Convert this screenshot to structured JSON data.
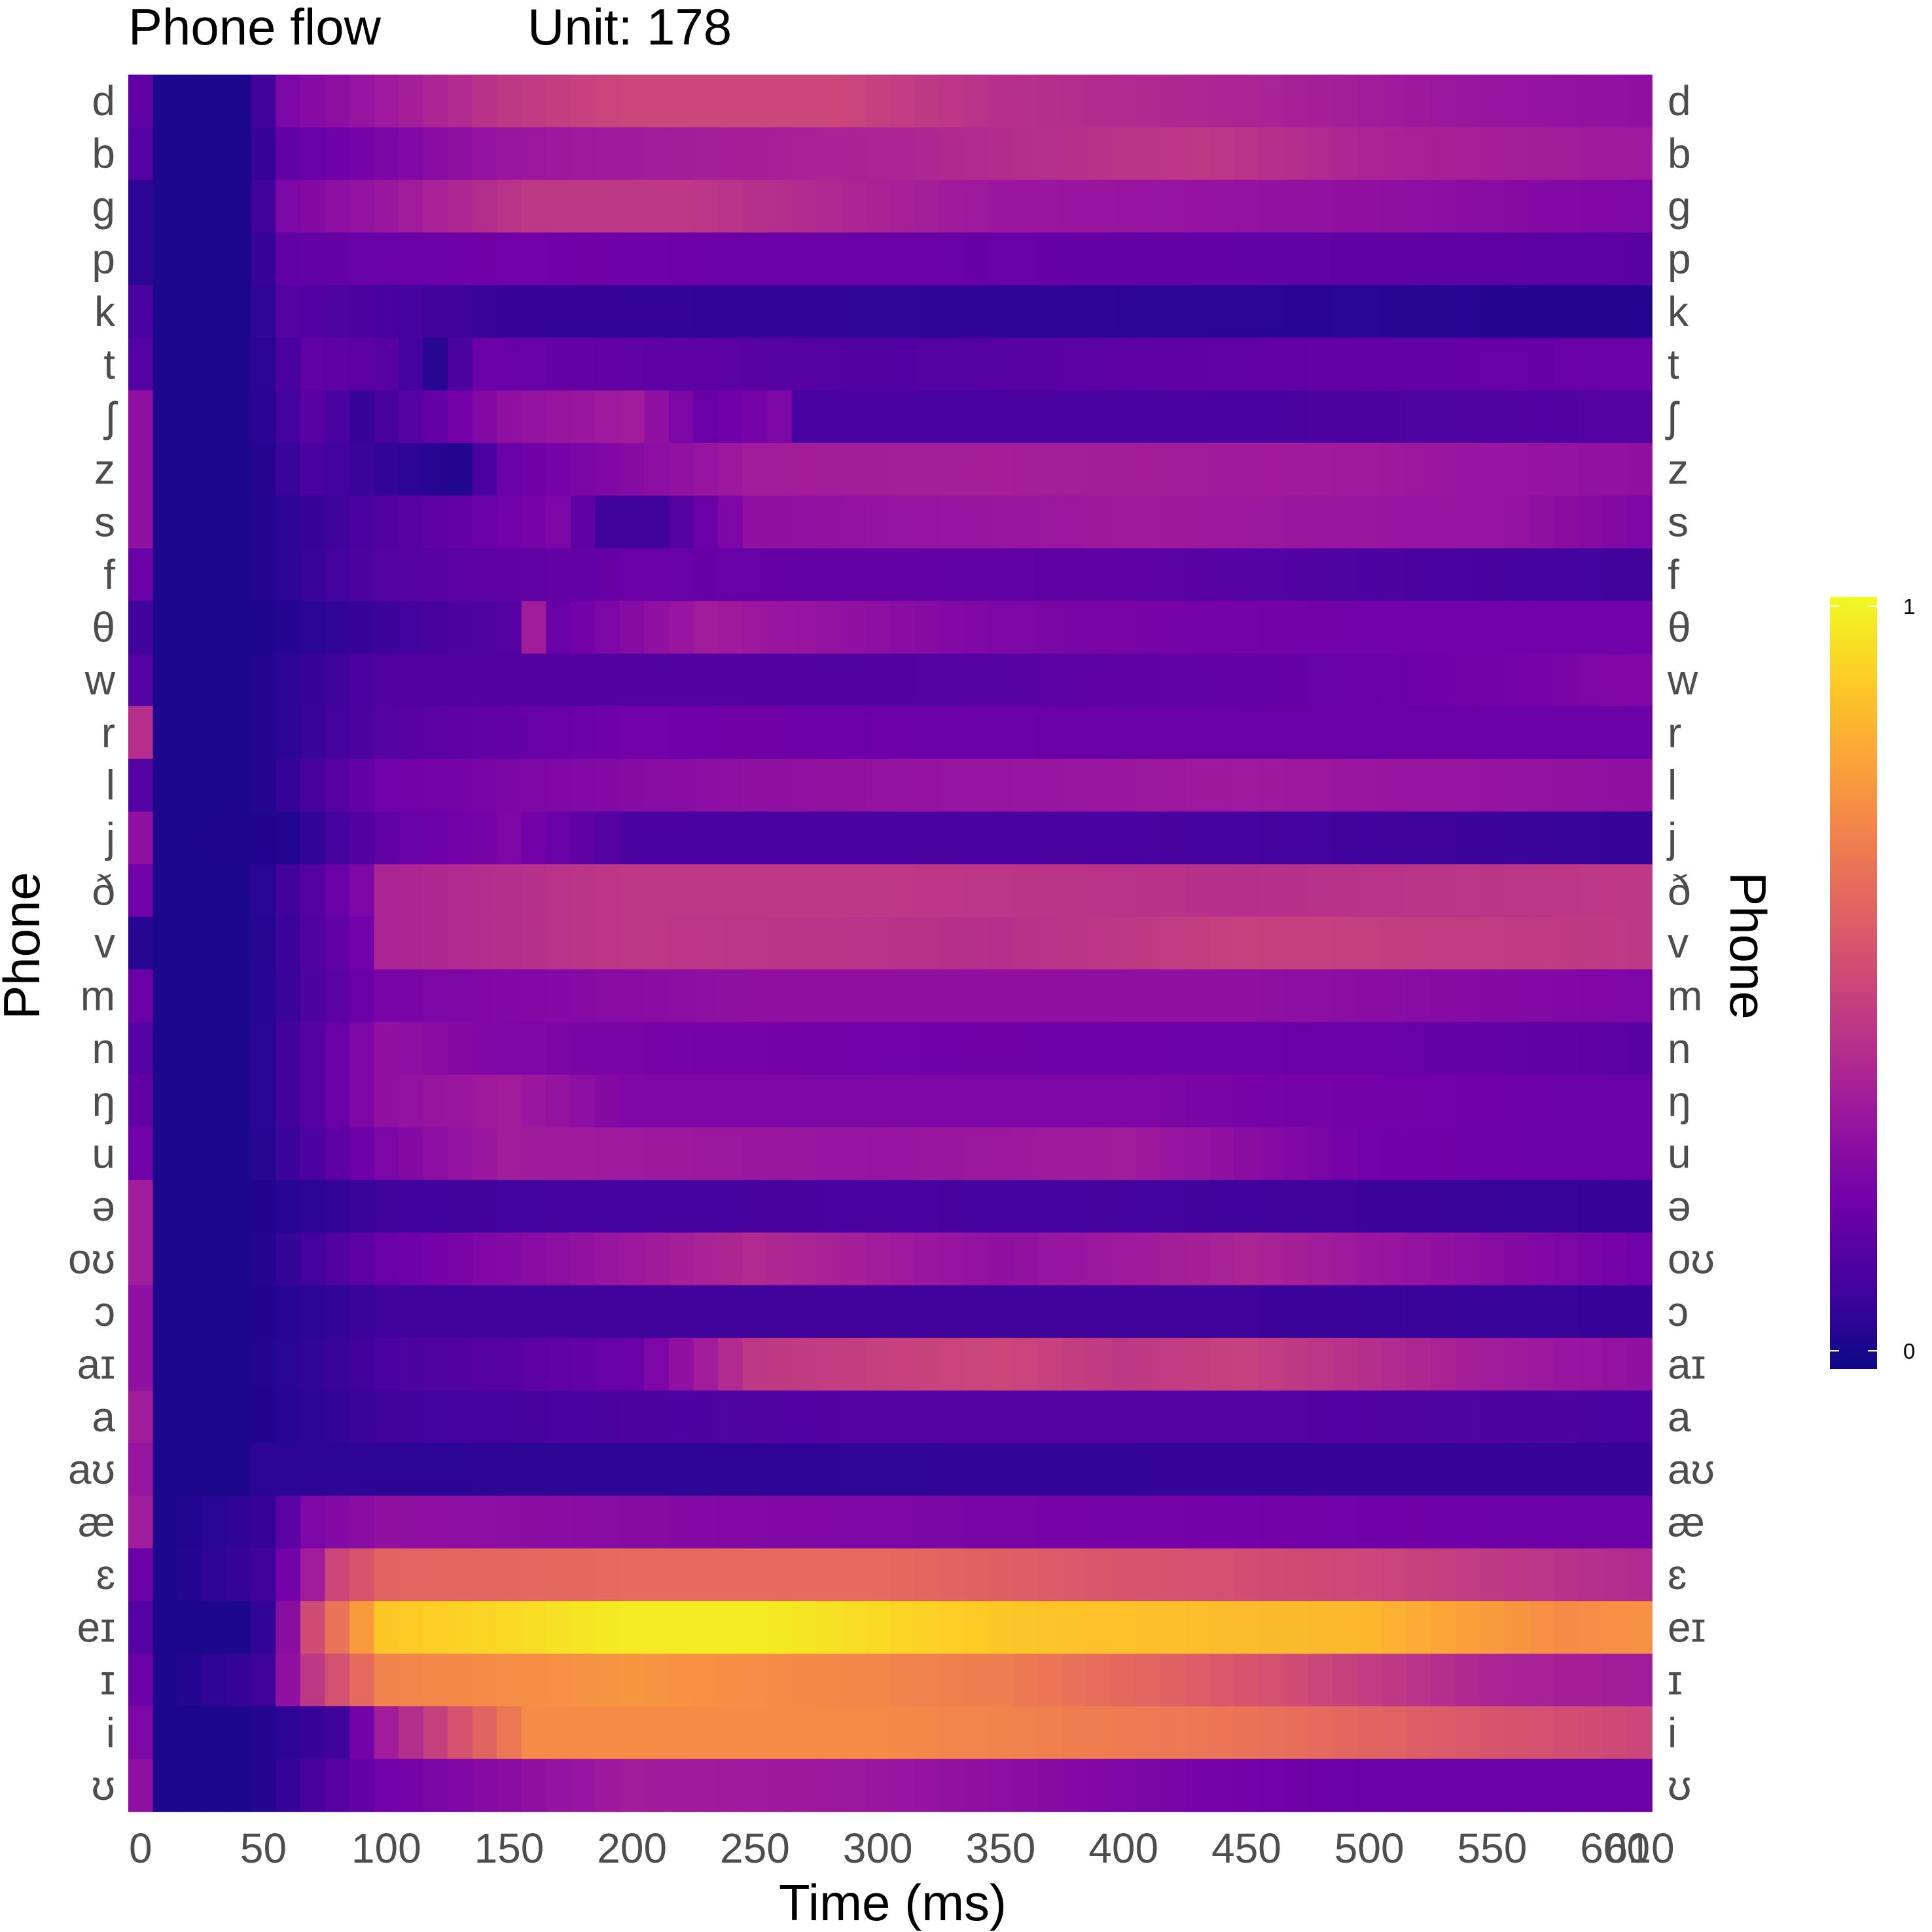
{
  "chart_data": {
    "type": "heatmap",
    "title": "Phone flow",
    "subtitle": "Unit: 178",
    "xlabel": "Time (ms)",
    "ylabel": "Phone",
    "ylabel_right": "Phone",
    "x_ticks": [
      0,
      50,
      100,
      150,
      200,
      250,
      300,
      350,
      400,
      450,
      500,
      550,
      600,
      610
    ],
    "x_tick_labels": [
      "0",
      "50",
      "100",
      "150",
      "200",
      "250",
      "300",
      "350",
      "400",
      "450",
      "500",
      "550",
      "600",
      "610"
    ],
    "xlim": [
      -5,
      615
    ],
    "time_step_ms": 10,
    "phones": [
      "d",
      "b",
      "g",
      "p",
      "k",
      "t",
      "ʃ",
      "z",
      "s",
      "f",
      "θ",
      "w",
      "r",
      "l",
      "j",
      "ð",
      "v",
      "m",
      "n",
      "ŋ",
      "u",
      "ə",
      "oʊ",
      "ɔ",
      "aɪ",
      "a",
      "aʊ",
      "æ",
      "ɛ",
      "eɪ",
      "ɪ",
      "i",
      "ʊ"
    ],
    "colorscale": "plasma",
    "color_range": [
      0,
      1
    ],
    "legend_ticks": [
      "1",
      "0"
    ],
    "legend_placement": "right",
    "grid": false,
    "profiles": {
      "d": [
        [
          0,
          0.18
        ],
        [
          5,
          0.12
        ],
        [
          10,
          0.03
        ],
        [
          45,
          0.03
        ],
        [
          60,
          0.25
        ],
        [
          150,
          0.45
        ],
        [
          200,
          0.5
        ],
        [
          280,
          0.5
        ],
        [
          350,
          0.42
        ],
        [
          450,
          0.38
        ],
        [
          550,
          0.32
        ],
        [
          610,
          0.3
        ]
      ],
      "b": [
        [
          0,
          0.15
        ],
        [
          5,
          0.1
        ],
        [
          10,
          0.03
        ],
        [
          45,
          0.03
        ],
        [
          60,
          0.18
        ],
        [
          150,
          0.33
        ],
        [
          300,
          0.38
        ],
        [
          430,
          0.45
        ],
        [
          500,
          0.38
        ],
        [
          610,
          0.34
        ]
      ],
      "g": [
        [
          0,
          0.06
        ],
        [
          10,
          0.03
        ],
        [
          45,
          0.03
        ],
        [
          60,
          0.25
        ],
        [
          160,
          0.45
        ],
        [
          220,
          0.45
        ],
        [
          350,
          0.33
        ],
        [
          500,
          0.3
        ],
        [
          610,
          0.25
        ]
      ],
      "p": [
        [
          0,
          0.06
        ],
        [
          10,
          0.03
        ],
        [
          45,
          0.03
        ],
        [
          60,
          0.18
        ],
        [
          150,
          0.22
        ],
        [
          300,
          0.2
        ],
        [
          450,
          0.18
        ],
        [
          610,
          0.16
        ]
      ],
      "k": [
        [
          0,
          0.12
        ],
        [
          10,
          0.03
        ],
        [
          45,
          0.03
        ],
        [
          60,
          0.15
        ],
        [
          150,
          0.08
        ],
        [
          300,
          0.07
        ],
        [
          450,
          0.06
        ],
        [
          610,
          0.04
        ]
      ],
      "t": [
        [
          0,
          0.15
        ],
        [
          10,
          0.03
        ],
        [
          45,
          0.03
        ],
        [
          70,
          0.18
        ],
        [
          100,
          0.16
        ],
        [
          120,
          0.05
        ],
        [
          140,
          0.2
        ],
        [
          300,
          0.14
        ],
        [
          450,
          0.18
        ],
        [
          610,
          0.2
        ]
      ],
      "ʃ": [
        [
          0,
          0.3
        ],
        [
          5,
          0.28
        ],
        [
          10,
          0.03
        ],
        [
          45,
          0.03
        ],
        [
          70,
          0.16
        ],
        [
          90,
          0.08
        ],
        [
          150,
          0.3
        ],
        [
          200,
          0.35
        ],
        [
          230,
          0.2
        ],
        [
          260,
          0.25
        ],
        [
          270,
          0.12
        ],
        [
          450,
          0.12
        ],
        [
          610,
          0.15
        ]
      ],
      "z": [
        [
          0,
          0.3
        ],
        [
          10,
          0.03
        ],
        [
          45,
          0.03
        ],
        [
          70,
          0.12
        ],
        [
          110,
          0.06
        ],
        [
          130,
          0.04
        ],
        [
          150,
          0.2
        ],
        [
          250,
          0.35
        ],
        [
          350,
          0.36
        ],
        [
          500,
          0.34
        ],
        [
          610,
          0.3
        ]
      ],
      "s": [
        [
          0,
          0.3
        ],
        [
          10,
          0.03
        ],
        [
          45,
          0.03
        ],
        [
          100,
          0.14
        ],
        [
          170,
          0.25
        ],
        [
          190,
          0.1
        ],
        [
          210,
          0.1
        ],
        [
          250,
          0.3
        ],
        [
          400,
          0.34
        ],
        [
          550,
          0.32
        ],
        [
          610,
          0.25
        ]
      ],
      "f": [
        [
          0,
          0.2
        ],
        [
          10,
          0.03
        ],
        [
          45,
          0.03
        ],
        [
          100,
          0.15
        ],
        [
          200,
          0.2
        ],
        [
          400,
          0.17
        ],
        [
          500,
          0.13
        ],
        [
          610,
          0.1
        ]
      ],
      "θ": [
        [
          0,
          0.1
        ],
        [
          10,
          0.03
        ],
        [
          45,
          0.03
        ],
        [
          150,
          0.15
        ],
        [
          160,
          0.35
        ],
        [
          170,
          0.2
        ],
        [
          230,
          0.35
        ],
        [
          350,
          0.25
        ],
        [
          500,
          0.22
        ],
        [
          610,
          0.22
        ]
      ],
      "w": [
        [
          0,
          0.15
        ],
        [
          10,
          0.03
        ],
        [
          45,
          0.03
        ],
        [
          100,
          0.14
        ],
        [
          300,
          0.14
        ],
        [
          500,
          0.2
        ],
        [
          610,
          0.26
        ]
      ],
      "r": [
        [
          0,
          0.42
        ],
        [
          5,
          0.35
        ],
        [
          10,
          0.03
        ],
        [
          45,
          0.03
        ],
        [
          100,
          0.15
        ],
        [
          200,
          0.22
        ],
        [
          400,
          0.2
        ],
        [
          610,
          0.2
        ]
      ],
      "l": [
        [
          0,
          0.15
        ],
        [
          10,
          0.03
        ],
        [
          45,
          0.03
        ],
        [
          100,
          0.22
        ],
        [
          250,
          0.3
        ],
        [
          450,
          0.34
        ],
        [
          610,
          0.3
        ]
      ],
      "j": [
        [
          0,
          0.3
        ],
        [
          10,
          0.03
        ],
        [
          60,
          0.04
        ],
        [
          100,
          0.18
        ],
        [
          150,
          0.25
        ],
        [
          200,
          0.12
        ],
        [
          400,
          0.12
        ],
        [
          610,
          0.08
        ]
      ],
      "ð": [
        [
          0,
          0.22
        ],
        [
          10,
          0.03
        ],
        [
          45,
          0.03
        ],
        [
          90,
          0.25
        ],
        [
          100,
          0.38
        ],
        [
          200,
          0.45
        ],
        [
          300,
          0.45
        ],
        [
          450,
          0.42
        ],
        [
          610,
          0.45
        ]
      ],
      "v": [
        [
          0,
          0.05
        ],
        [
          10,
          0.03
        ],
        [
          45,
          0.03
        ],
        [
          90,
          0.22
        ],
        [
          100,
          0.38
        ],
        [
          200,
          0.45
        ],
        [
          350,
          0.42
        ],
        [
          450,
          0.48
        ],
        [
          610,
          0.45
        ]
      ],
      "m": [
        [
          0,
          0.2
        ],
        [
          10,
          0.03
        ],
        [
          45,
          0.03
        ],
        [
          100,
          0.24
        ],
        [
          250,
          0.3
        ],
        [
          450,
          0.3
        ],
        [
          610,
          0.25
        ]
      ],
      "n": [
        [
          0,
          0.15
        ],
        [
          10,
          0.03
        ],
        [
          45,
          0.03
        ],
        [
          100,
          0.3
        ],
        [
          150,
          0.25
        ],
        [
          300,
          0.22
        ],
        [
          500,
          0.2
        ],
        [
          610,
          0.16
        ]
      ],
      "ŋ": [
        [
          0,
          0.18
        ],
        [
          10,
          0.03
        ],
        [
          45,
          0.03
        ],
        [
          100,
          0.3
        ],
        [
          150,
          0.35
        ],
        [
          200,
          0.25
        ],
        [
          400,
          0.25
        ],
        [
          610,
          0.2
        ]
      ],
      "u": [
        [
          0,
          0.22
        ],
        [
          10,
          0.03
        ],
        [
          45,
          0.03
        ],
        [
          100,
          0.25
        ],
        [
          150,
          0.35
        ],
        [
          300,
          0.32
        ],
        [
          400,
          0.35
        ],
        [
          500,
          0.22
        ],
        [
          610,
          0.2
        ]
      ],
      "ə": [
        [
          0,
          0.35
        ],
        [
          10,
          0.03
        ],
        [
          45,
          0.03
        ],
        [
          100,
          0.1
        ],
        [
          300,
          0.12
        ],
        [
          610,
          0.08
        ]
      ],
      "oʊ": [
        [
          0,
          0.35
        ],
        [
          10,
          0.03
        ],
        [
          45,
          0.03
        ],
        [
          100,
          0.2
        ],
        [
          250,
          0.4
        ],
        [
          350,
          0.3
        ],
        [
          450,
          0.38
        ],
        [
          610,
          0.22
        ]
      ],
      "ɔ": [
        [
          0,
          0.3
        ],
        [
          10,
          0.03
        ],
        [
          45,
          0.03
        ],
        [
          100,
          0.1
        ],
        [
          400,
          0.1
        ],
        [
          610,
          0.08
        ]
      ],
      "aɪ": [
        [
          0,
          0.3
        ],
        [
          10,
          0.03
        ],
        [
          45,
          0.03
        ],
        [
          100,
          0.12
        ],
        [
          200,
          0.2
        ],
        [
          250,
          0.45
        ],
        [
          350,
          0.5
        ],
        [
          400,
          0.45
        ],
        [
          450,
          0.48
        ],
        [
          550,
          0.35
        ],
        [
          610,
          0.3
        ]
      ],
      "a": [
        [
          0,
          0.35
        ],
        [
          10,
          0.03
        ],
        [
          45,
          0.03
        ],
        [
          100,
          0.1
        ],
        [
          300,
          0.15
        ],
        [
          450,
          0.15
        ],
        [
          610,
          0.12
        ]
      ],
      "aʊ": [
        [
          0,
          0.32
        ],
        [
          10,
          0.03
        ],
        [
          45,
          0.03
        ],
        [
          50,
          0.06
        ],
        [
          300,
          0.07
        ],
        [
          500,
          0.08
        ],
        [
          610,
          0.08
        ]
      ],
      "æ": [
        [
          0,
          0.35
        ],
        [
          10,
          0.03
        ],
        [
          50,
          0.08
        ],
        [
          70,
          0.25
        ],
        [
          100,
          0.3
        ],
        [
          300,
          0.25
        ],
        [
          610,
          0.2
        ]
      ],
      "ɛ": [
        [
          0,
          0.2
        ],
        [
          10,
          0.03
        ],
        [
          50,
          0.1
        ],
        [
          70,
          0.35
        ],
        [
          80,
          0.5
        ],
        [
          100,
          0.6
        ],
        [
          200,
          0.62
        ],
        [
          300,
          0.62
        ],
        [
          400,
          0.55
        ],
        [
          500,
          0.5
        ],
        [
          610,
          0.4
        ]
      ],
      "eɪ": [
        [
          0,
          0.15
        ],
        [
          10,
          0.03
        ],
        [
          45,
          0.03
        ],
        [
          55,
          0.12
        ],
        [
          65,
          0.45
        ],
        [
          80,
          0.65
        ],
        [
          100,
          0.88
        ],
        [
          200,
          0.97
        ],
        [
          250,
          0.97
        ],
        [
          350,
          0.88
        ],
        [
          500,
          0.84
        ],
        [
          580,
          0.72
        ],
        [
          610,
          0.74
        ]
      ],
      "ɪ": [
        [
          0,
          0.2
        ],
        [
          10,
          0.03
        ],
        [
          50,
          0.1
        ],
        [
          60,
          0.3
        ],
        [
          70,
          0.45
        ],
        [
          100,
          0.7
        ],
        [
          200,
          0.75
        ],
        [
          350,
          0.68
        ],
        [
          450,
          0.55
        ],
        [
          550,
          0.38
        ],
        [
          610,
          0.35
        ]
      ],
      "i": [
        [
          0,
          0.25
        ],
        [
          10,
          0.03
        ],
        [
          45,
          0.03
        ],
        [
          80,
          0.1
        ],
        [
          100,
          0.35
        ],
        [
          140,
          0.6
        ],
        [
          160,
          0.72
        ],
        [
          300,
          0.72
        ],
        [
          450,
          0.65
        ],
        [
          550,
          0.55
        ],
        [
          610,
          0.5
        ]
      ],
      "ʊ": [
        [
          0,
          0.3
        ],
        [
          10,
          0.03
        ],
        [
          45,
          0.03
        ],
        [
          100,
          0.22
        ],
        [
          200,
          0.35
        ],
        [
          300,
          0.33
        ],
        [
          400,
          0.25
        ],
        [
          500,
          0.2
        ],
        [
          610,
          0.2
        ]
      ]
    }
  },
  "colors": {
    "plasma": [
      "#0d0887",
      "#46039f",
      "#7201a8",
      "#9c179e",
      "#bd3786",
      "#d8576b",
      "#ed7953",
      "#fb9f3a",
      "#fdca26",
      "#f0f921"
    ],
    "tick_text": "#4d4d4d",
    "title_text": "#000000"
  }
}
